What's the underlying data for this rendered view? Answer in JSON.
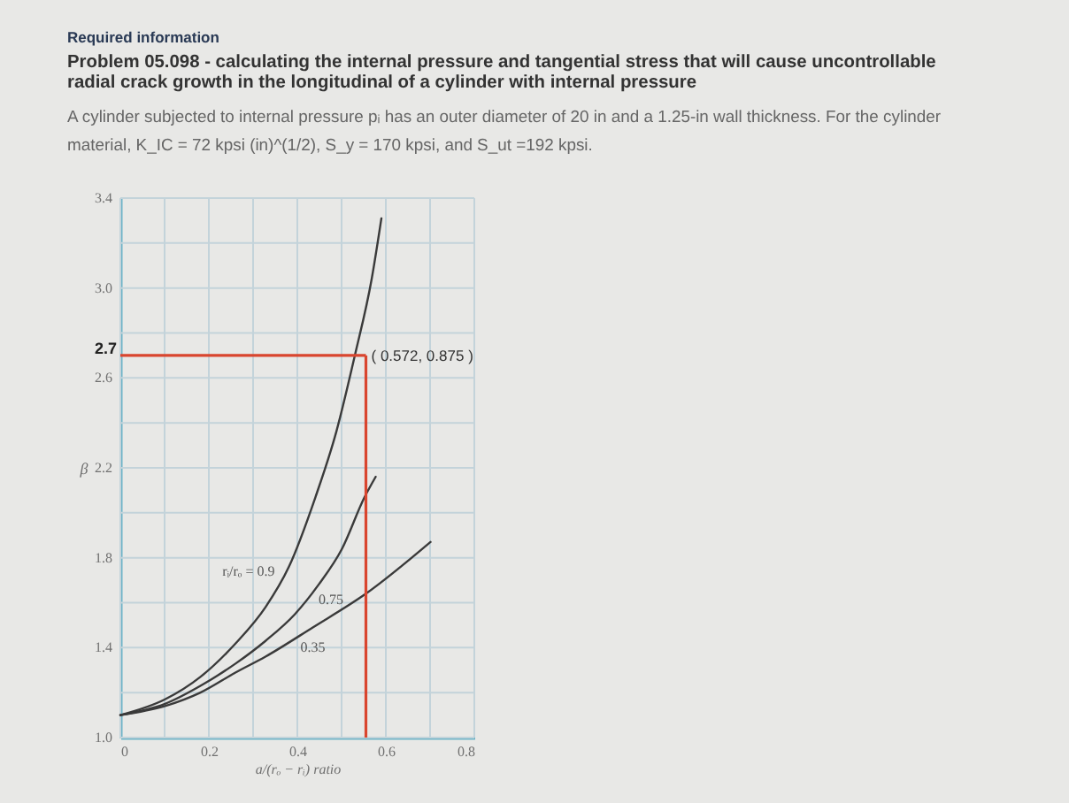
{
  "chart_data": {
    "type": "line",
    "title": "Required information",
    "subtitle": "Problem 05.098 - calculating the internal pressure and tangential stress that will cause uncontrollable radial crack growth in the longitudinal of a cylinder with internal pressure",
    "annotations": [
      "A cylinder subjected to internal pressure pᵢ has an outer diameter of 20 in and a 1.25-in wall thickness. For the cylinder material, K_IC = 72 kpsi (in)^(1/2), S_y = 170 kpsi, and S_ut =192 kpsi.",
      {
        "text": "( 0.572, 0.875 )",
        "x": 0.555,
        "y": 2.7
      }
    ],
    "xlabel": "a/(rₒ − rᵢ) ratio",
    "ylabel": "β",
    "xlim": [
      0,
      0.8
    ],
    "ylim": [
      1.0,
      3.4
    ],
    "xticks": [
      0,
      {
        "value": 0.1,
        "label": null
      },
      0.2,
      {
        "value": 0.3,
        "label": null
      },
      0.4,
      {
        "value": 0.5,
        "label": null
      },
      0.6,
      {
        "value": 0.7,
        "label": null
      },
      0.8
    ],
    "yticks": [
      {
        "value": 1,
        "label": "1.0"
      },
      {
        "value": 1.2,
        "label": null
      },
      1.4,
      {
        "value": 1.6,
        "label": null
      },
      1.8,
      {
        "value": 2.0,
        "label": null
      },
      2.2,
      {
        "value": 2.4,
        "label": null
      },
      2.6,
      {
        "value": 2.8,
        "label": null
      },
      {
        "value": 3,
        "label": "3.0"
      },
      {
        "value": 3.2,
        "label": null
      },
      3.4
    ],
    "grid": true,
    "series": [
      {
        "name": "rᵢ/rₒ = 0.9",
        "color": "#3a3a3a",
        "x": [
          0,
          0.101,
          0.181,
          0.261,
          0.328,
          0.381,
          0.441,
          0.488,
          0.53,
          0.568,
          0.59
        ],
        "values": [
          1.1,
          1.17,
          1.27,
          1.42,
          1.58,
          1.76,
          2.07,
          2.36,
          2.7,
          3.04,
          3.31
        ]
      },
      {
        "name": "0.75",
        "color": "#3a3a3a",
        "x": [
          0,
          0.101,
          0.181,
          0.261,
          0.328,
          0.395,
          0.448,
          0.501,
          0.552,
          0.577
        ],
        "values": [
          1.1,
          1.15,
          1.23,
          1.33,
          1.43,
          1.55,
          1.68,
          1.84,
          2.07,
          2.16
        ]
      },
      {
        "name": "0.35",
        "color": "#3a3a3a",
        "x": [
          0,
          0.101,
          0.181,
          0.261,
          0.328,
          0.435,
          0.555,
          0.701
        ],
        "values": [
          1.1,
          1.14,
          1.2,
          1.29,
          1.36,
          1.49,
          1.64,
          1.87
        ]
      }
    ],
    "ref_lines": [
      {
        "axis": "y",
        "value": 2.7,
        "label": "2.7",
        "color": "#d9452e"
      },
      {
        "axis": "x",
        "value": 0.555,
        "color": "#d9452e"
      }
    ]
  }
}
